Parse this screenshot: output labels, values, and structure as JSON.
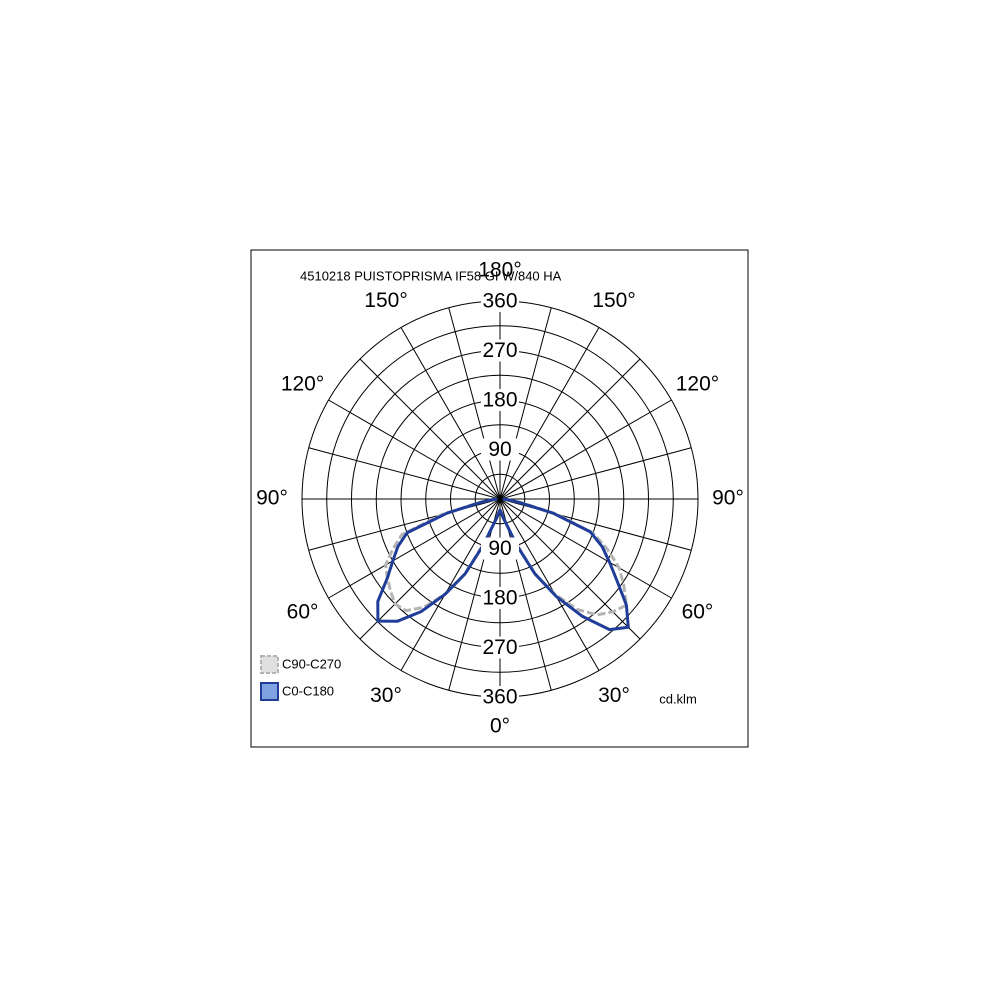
{
  "chart_data": {
    "type": "polar",
    "title": "4510218 PUISTOPRISMA IF58 GI W/840 HA",
    "unit_label": "cd.klm",
    "x": [
      -90,
      -85,
      -80,
      -75,
      -70,
      -65,
      -60,
      -55,
      -50,
      -45,
      -40,
      -35,
      -30,
      -25,
      -20,
      -15,
      -10,
      -5,
      0,
      5,
      10,
      15,
      20,
      25,
      30,
      35,
      40,
      45,
      50,
      55,
      60,
      65,
      70,
      75,
      80,
      85,
      90
    ],
    "series": [
      {
        "name": "C90-C270",
        "color": "#b4b4b4",
        "dashed": true,
        "values": [
          5,
          15,
          40,
          110,
          190,
          215,
          240,
          250,
          260,
          270,
          265,
          240,
          200,
          150,
          85,
          50,
          35,
          25,
          20,
          25,
          35,
          50,
          85,
          150,
          200,
          245,
          275,
          290,
          300,
          275,
          250,
          215,
          180,
          105,
          40,
          15,
          5
        ]
      },
      {
        "name": "C0-C180",
        "color": "#1f3d99",
        "dashed": false,
        "values": [
          5,
          15,
          35,
          100,
          180,
          205,
          225,
          250,
          290,
          314,
          290,
          250,
          200,
          150,
          90,
          50,
          35,
          25,
          20,
          25,
          35,
          50,
          90,
          150,
          205,
          260,
          310,
          330,
          300,
          260,
          230,
          205,
          175,
          100,
          35,
          15,
          5
        ]
      }
    ],
    "rlim": [
      0,
      360
    ],
    "rticks": [
      90,
      180,
      270,
      360
    ],
    "r_grid_step": 45,
    "angle_grid_step": 15,
    "xticks": [
      {
        "value": -150,
        "label": "150°"
      },
      {
        "value": -120,
        "label": "120°"
      },
      {
        "value": -90,
        "label": "90°"
      },
      {
        "value": -60,
        "label": "60°"
      },
      {
        "value": -30,
        "label": "30°"
      },
      {
        "value": 0,
        "label": "0°"
      },
      {
        "value": 30,
        "label": "30°"
      },
      {
        "value": 60,
        "label": "60°"
      },
      {
        "value": 90,
        "label": "90°"
      },
      {
        "value": 120,
        "label": "120°"
      },
      {
        "value": 150,
        "label": "150°"
      },
      {
        "value": 180,
        "label": "180°"
      }
    ],
    "legend": "bottom-left"
  }
}
